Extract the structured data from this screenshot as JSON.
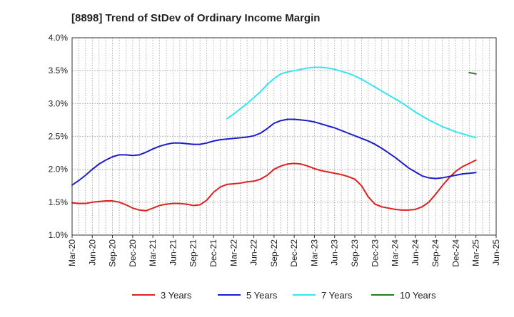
{
  "chart_data": {
    "type": "line",
    "title": "[8898]  Trend of StDev of Ordinary Income Margin",
    "xlabel": "",
    "ylabel": "",
    "x_ticks": [
      "Mar-20",
      "Jun-20",
      "Sep-20",
      "Dec-20",
      "Mar-21",
      "Jun-21",
      "Sep-21",
      "Dec-21",
      "Mar-22",
      "Jun-22",
      "Sep-22",
      "Dec-22",
      "Mar-23",
      "Jun-23",
      "Sep-23",
      "Dec-23",
      "Mar-24",
      "Jun-24",
      "Sep-24",
      "Dec-24",
      "Mar-25",
      "Jun-25"
    ],
    "y_ticks": [
      "1.0%",
      "1.5%",
      "2.0%",
      "2.5%",
      "3.0%",
      "3.5%",
      "4.0%"
    ],
    "ylim": [
      1.0,
      4.0
    ],
    "y_unit": "%",
    "grid": true,
    "legend_position": "bottom",
    "series": [
      {
        "name": "3 Years",
        "color": "#e02020",
        "x": [
          "2020-03",
          "2020-04",
          "2020-05",
          "2020-06",
          "2020-07",
          "2020-08",
          "2020-09",
          "2020-10",
          "2020-11",
          "2020-12",
          "2021-01",
          "2021-02",
          "2021-03",
          "2021-04",
          "2021-05",
          "2021-06",
          "2021-07",
          "2021-08",
          "2021-09",
          "2021-10",
          "2021-11",
          "2021-12",
          "2022-01",
          "2022-02",
          "2022-03",
          "2022-04",
          "2022-05",
          "2022-06",
          "2022-07",
          "2022-08",
          "2022-09",
          "2022-10",
          "2022-11",
          "2022-12",
          "2023-01",
          "2023-02",
          "2023-03",
          "2023-04",
          "2023-05",
          "2023-06",
          "2023-07",
          "2023-08",
          "2023-09",
          "2023-10",
          "2023-11",
          "2023-12",
          "2024-01",
          "2024-02",
          "2024-03",
          "2024-04",
          "2024-05",
          "2024-06",
          "2024-07",
          "2024-08",
          "2024-09",
          "2024-10",
          "2024-11",
          "2024-12",
          "2025-01",
          "2025-02",
          "2025-03"
        ],
        "values": [
          1.49,
          1.48,
          1.48,
          1.5,
          1.51,
          1.52,
          1.52,
          1.5,
          1.46,
          1.41,
          1.38,
          1.37,
          1.41,
          1.45,
          1.47,
          1.48,
          1.48,
          1.47,
          1.45,
          1.46,
          1.53,
          1.65,
          1.73,
          1.77,
          1.78,
          1.79,
          1.81,
          1.82,
          1.85,
          1.91,
          2.0,
          2.05,
          2.08,
          2.09,
          2.08,
          2.05,
          2.01,
          1.98,
          1.96,
          1.94,
          1.92,
          1.89,
          1.85,
          1.75,
          1.58,
          1.47,
          1.43,
          1.41,
          1.39,
          1.38,
          1.38,
          1.39,
          1.43,
          1.5,
          1.62,
          1.75,
          1.87,
          1.97,
          2.04,
          2.09,
          2.14
        ]
      },
      {
        "name": "5 Years",
        "color": "#1c1ccc",
        "x": [
          "2020-03",
          "2020-04",
          "2020-05",
          "2020-06",
          "2020-07",
          "2020-08",
          "2020-09",
          "2020-10",
          "2020-11",
          "2020-12",
          "2021-01",
          "2021-02",
          "2021-03",
          "2021-04",
          "2021-05",
          "2021-06",
          "2021-07",
          "2021-08",
          "2021-09",
          "2021-10",
          "2021-11",
          "2021-12",
          "2022-01",
          "2022-02",
          "2022-03",
          "2022-04",
          "2022-05",
          "2022-06",
          "2022-07",
          "2022-08",
          "2022-09",
          "2022-10",
          "2022-11",
          "2022-12",
          "2023-01",
          "2023-02",
          "2023-03",
          "2023-04",
          "2023-05",
          "2023-06",
          "2023-07",
          "2023-08",
          "2023-09",
          "2023-10",
          "2023-11",
          "2023-12",
          "2024-01",
          "2024-02",
          "2024-03",
          "2024-04",
          "2024-05",
          "2024-06",
          "2024-07",
          "2024-08",
          "2024-09",
          "2024-10",
          "2024-11",
          "2024-12",
          "2025-01",
          "2025-02",
          "2025-03"
        ],
        "values": [
          1.76,
          1.83,
          1.91,
          2.0,
          2.08,
          2.14,
          2.19,
          2.22,
          2.22,
          2.21,
          2.22,
          2.26,
          2.31,
          2.35,
          2.38,
          2.4,
          2.4,
          2.39,
          2.38,
          2.38,
          2.4,
          2.43,
          2.45,
          2.46,
          2.47,
          2.48,
          2.49,
          2.51,
          2.55,
          2.62,
          2.7,
          2.74,
          2.76,
          2.76,
          2.75,
          2.74,
          2.72,
          2.69,
          2.66,
          2.63,
          2.59,
          2.55,
          2.51,
          2.47,
          2.43,
          2.38,
          2.32,
          2.25,
          2.18,
          2.1,
          2.02,
          1.96,
          1.9,
          1.87,
          1.86,
          1.87,
          1.89,
          1.91,
          1.93,
          1.94,
          1.95
        ]
      },
      {
        "name": "7 Years",
        "color": "#33e6f0",
        "x": [
          "2022-02",
          "2022-03",
          "2022-04",
          "2022-05",
          "2022-06",
          "2022-07",
          "2022-08",
          "2022-09",
          "2022-10",
          "2022-11",
          "2022-12",
          "2023-01",
          "2023-02",
          "2023-03",
          "2023-04",
          "2023-05",
          "2023-06",
          "2023-07",
          "2023-08",
          "2023-09",
          "2023-10",
          "2023-11",
          "2023-12",
          "2024-01",
          "2024-02",
          "2024-03",
          "2024-04",
          "2024-05",
          "2024-06",
          "2024-07",
          "2024-08",
          "2024-09",
          "2024-10",
          "2024-11",
          "2024-12",
          "2025-01",
          "2025-02",
          "2025-03"
        ],
        "values": [
          2.77,
          2.84,
          2.92,
          3.0,
          3.09,
          3.18,
          3.29,
          3.38,
          3.45,
          3.48,
          3.5,
          3.52,
          3.54,
          3.55,
          3.55,
          3.54,
          3.52,
          3.49,
          3.46,
          3.42,
          3.37,
          3.31,
          3.25,
          3.19,
          3.13,
          3.07,
          3.01,
          2.94,
          2.87,
          2.81,
          2.75,
          2.7,
          2.65,
          2.61,
          2.57,
          2.54,
          2.51,
          2.48
        ]
      },
      {
        "name": "10 Years",
        "color": "#208020",
        "x": [
          "2025-02",
          "2025-03"
        ],
        "values": [
          3.47,
          3.45
        ]
      }
    ]
  }
}
